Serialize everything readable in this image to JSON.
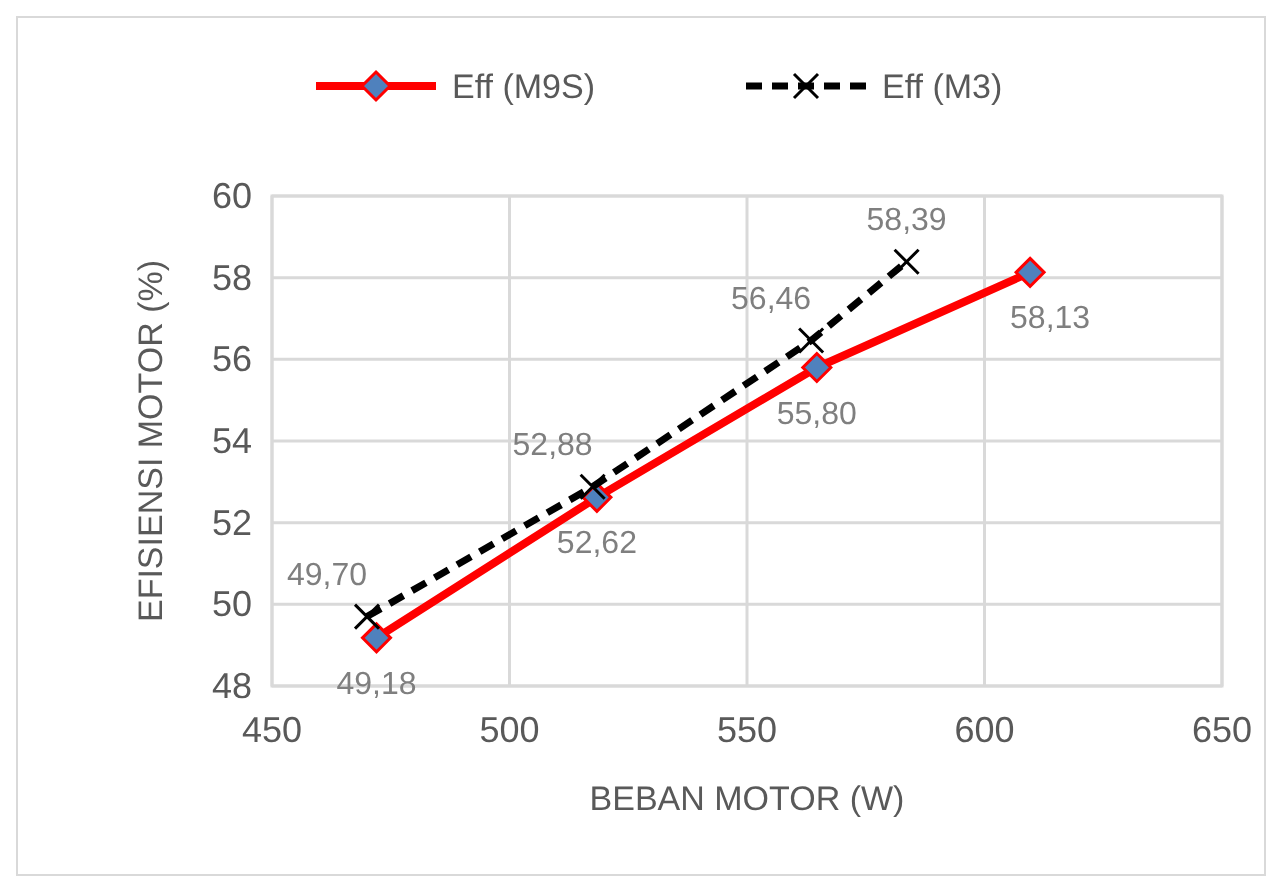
{
  "chart_data": {
    "type": "line",
    "xlabel": "BEBAN MOTOR (W)",
    "ylabel": "EFISIENSI MOTOR (%)",
    "xlim": [
      450,
      650
    ],
    "xticks": [
      450,
      500,
      550,
      600,
      650
    ],
    "ylim": [
      48,
      60
    ],
    "yticks": [
      48,
      50,
      52,
      54,
      56,
      58,
      60
    ],
    "grid": true,
    "legend": "top",
    "data_labels": true,
    "series": [
      {
        "name": "Eff (M9S)",
        "color": "#ff0000",
        "marker": "diamond",
        "line_style": "solid",
        "x": [
          472,
          518.4,
          564.7,
          609.6
        ],
        "values": [
          49.18,
          52.62,
          55.8,
          58.13
        ],
        "value_labels": [
          "49,18",
          "52,62",
          "55,80",
          "58,13"
        ]
      },
      {
        "name": "Eff (M3)",
        "color": "#000000",
        "marker": "cross",
        "line_style": "dashed",
        "x": [
          470,
          517.5,
          563.5,
          583.6
        ],
        "values": [
          49.7,
          52.88,
          56.46,
          58.39
        ],
        "value_labels": [
          "49,70",
          "52,88",
          "56,46",
          "58,39"
        ]
      }
    ]
  }
}
